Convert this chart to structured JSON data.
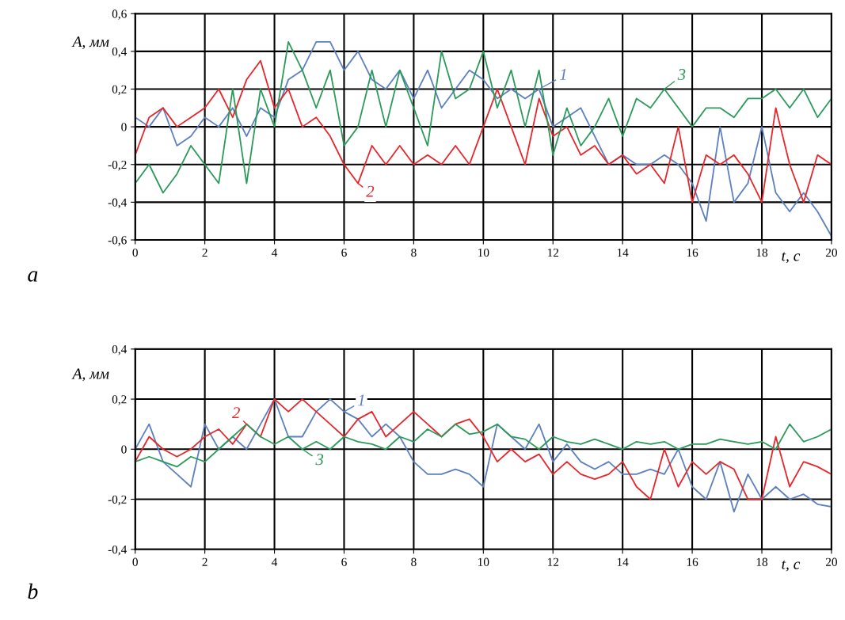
{
  "chart_data": [
    {
      "type": "line",
      "xlabel": "t, с",
      "ylabel": "A, мм",
      "annotations": [
        "a"
      ],
      "grid": true,
      "legend": "bottom right",
      "marker": "none",
      "line_style": "solid",
      "x": [
        0,
        0.4,
        0.8,
        1.2,
        1.6,
        2,
        2.4,
        2.8,
        3.2,
        3.6,
        4,
        4.4,
        4.8,
        5.2,
        5.6,
        6,
        6.4,
        6.8,
        7.2,
        7.6,
        8,
        8.4,
        8.8,
        9.2,
        9.6,
        10,
        10.4,
        10.8,
        11.2,
        11.6,
        12,
        12.4,
        12.8,
        13.2,
        13.6,
        14,
        14.4,
        14.8,
        15.2,
        15.6,
        16,
        16.4,
        16.8,
        17.2,
        17.6,
        18,
        18.4,
        18.8,
        19.2,
        19.6,
        20
      ],
      "xlim": [
        0,
        20
      ],
      "xticks": [
        0,
        2,
        4,
        6,
        8,
        10,
        12,
        14,
        16,
        18,
        20
      ],
      "ylim": [
        -0.6,
        0.6
      ],
      "yticks": [
        {
          "value": -0.6,
          "label": "-0,6"
        },
        {
          "value": -0.4,
          "label": "-0,4"
        },
        {
          "value": -0.2,
          "label": "-0,2"
        },
        {
          "value": 0,
          "label": "0"
        },
        {
          "value": 0.2,
          "label": "0,2"
        },
        {
          "value": 0.4,
          "label": "0,4"
        },
        {
          "value": 0.6,
          "label": "0,6"
        }
      ],
      "series": [
        {
          "name": "1",
          "color": "#5b7fbf",
          "values": [
            0.05,
            0.0,
            0.1,
            -0.1,
            -0.05,
            0.05,
            0.0,
            0.1,
            -0.05,
            0.1,
            0.05,
            0.25,
            0.3,
            0.45,
            0.45,
            0.3,
            0.4,
            0.25,
            0.2,
            0.3,
            0.15,
            0.3,
            0.1,
            0.2,
            0.3,
            0.25,
            0.15,
            0.2,
            0.15,
            0.2,
            0.0,
            0.05,
            0.1,
            -0.05,
            -0.2,
            -0.15,
            -0.2,
            -0.2,
            -0.15,
            -0.2,
            -0.3,
            -0.5,
            0.0,
            -0.4,
            -0.3,
            0.0,
            -0.35,
            -0.45,
            -0.35,
            -0.45,
            -0.58
          ]
        },
        {
          "name": "2",
          "color": "#e8252a",
          "values": [
            -0.15,
            0.05,
            0.1,
            0.0,
            0.05,
            0.1,
            0.2,
            0.05,
            0.25,
            0.35,
            0.1,
            0.2,
            0.0,
            0.05,
            -0.05,
            -0.2,
            -0.3,
            -0.1,
            -0.2,
            -0.1,
            -0.2,
            -0.15,
            -0.2,
            -0.1,
            -0.2,
            0.0,
            0.2,
            0.0,
            -0.2,
            0.15,
            -0.05,
            0.0,
            -0.15,
            -0.1,
            -0.2,
            -0.15,
            -0.25,
            -0.2,
            -0.3,
            0.0,
            -0.4,
            -0.15,
            -0.2,
            -0.15,
            -0.25,
            -0.4,
            0.1,
            -0.2,
            -0.4,
            -0.15,
            -0.2
          ]
        },
        {
          "name": "3",
          "color": "#2a9a5a",
          "values": [
            -0.3,
            -0.2,
            -0.35,
            -0.25,
            -0.1,
            -0.2,
            -0.3,
            0.2,
            -0.3,
            0.2,
            0.0,
            0.45,
            0.3,
            0.1,
            0.3,
            -0.1,
            0.0,
            0.3,
            0.0,
            0.3,
            0.1,
            -0.1,
            0.4,
            0.15,
            0.2,
            0.4,
            0.1,
            0.3,
            0.0,
            0.3,
            -0.15,
            0.1,
            -0.1,
            0.0,
            0.15,
            -0.05,
            0.15,
            0.1,
            0.2,
            0.1,
            0.0,
            0.1,
            0.1,
            0.05,
            0.15,
            0.15,
            0.2,
            0.1,
            0.2,
            0.05,
            0.15
          ]
        }
      ]
    },
    {
      "type": "line",
      "xlabel": "t, с",
      "ylabel": "A, мм",
      "annotations": [
        "b"
      ],
      "grid": true,
      "legend": "top left",
      "marker": "none",
      "line_style": "solid",
      "x": [
        0,
        0.4,
        0.8,
        1.2,
        1.6,
        2,
        2.4,
        2.8,
        3.2,
        3.6,
        4,
        4.4,
        4.8,
        5.2,
        5.6,
        6,
        6.4,
        6.8,
        7.2,
        7.6,
        8,
        8.4,
        8.8,
        9.2,
        9.6,
        10,
        10.4,
        10.8,
        11.2,
        11.6,
        12,
        12.4,
        12.8,
        13.2,
        13.6,
        14,
        14.4,
        14.8,
        15.2,
        15.6,
        16,
        16.4,
        16.8,
        17.2,
        17.6,
        18,
        18.4,
        18.8,
        19.2,
        19.6,
        20
      ],
      "xlim": [
        0,
        20
      ],
      "xticks": [
        0,
        2,
        4,
        6,
        8,
        10,
        12,
        14,
        16,
        18,
        20
      ],
      "ylim": [
        -0.4,
        0.4
      ],
      "yticks": [
        {
          "value": -0.4,
          "label": "-0,4"
        },
        {
          "value": -0.2,
          "label": "-0,2"
        },
        {
          "value": 0,
          "label": "0"
        },
        {
          "value": 0.2,
          "label": "0,2"
        },
        {
          "value": 0.4,
          "label": "0,4"
        }
      ],
      "series": [
        {
          "name": "1",
          "color": "#5b7fbf",
          "values": [
            0.0,
            0.1,
            -0.05,
            -0.1,
            -0.15,
            0.1,
            0.0,
            0.05,
            0.0,
            0.1,
            0.2,
            0.05,
            0.05,
            0.15,
            0.2,
            0.15,
            0.12,
            0.05,
            0.1,
            0.05,
            -0.05,
            -0.1,
            -0.1,
            -0.08,
            -0.1,
            -0.15,
            0.1,
            0.05,
            0.0,
            0.1,
            -0.05,
            0.02,
            -0.05,
            -0.08,
            -0.05,
            -0.1,
            -0.1,
            -0.08,
            -0.1,
            0.0,
            -0.15,
            -0.2,
            -0.05,
            -0.25,
            -0.1,
            -0.2,
            -0.15,
            -0.2,
            -0.18,
            -0.22,
            -0.23
          ]
        },
        {
          "name": "2",
          "color": "#e8252a",
          "values": [
            -0.05,
            0.05,
            0.0,
            -0.03,
            0.0,
            0.05,
            0.08,
            0.02,
            0.1,
            0.05,
            0.2,
            0.15,
            0.2,
            0.15,
            0.1,
            0.05,
            0.12,
            0.15,
            0.05,
            0.1,
            0.15,
            0.1,
            0.05,
            0.1,
            0.12,
            0.05,
            -0.05,
            0.0,
            -0.05,
            -0.02,
            -0.1,
            -0.05,
            -0.1,
            -0.12,
            -0.1,
            -0.05,
            -0.15,
            -0.2,
            0.0,
            -0.15,
            -0.05,
            -0.1,
            -0.05,
            -0.08,
            -0.2,
            -0.2,
            0.05,
            -0.15,
            -0.05,
            -0.07,
            -0.1
          ]
        },
        {
          "name": "3",
          "color": "#2a9a5a",
          "values": [
            -0.05,
            -0.03,
            -0.05,
            -0.07,
            -0.03,
            -0.05,
            0.0,
            0.05,
            0.1,
            0.05,
            0.02,
            0.05,
            0.0,
            0.03,
            0.0,
            0.05,
            0.03,
            0.02,
            0.0,
            0.05,
            0.03,
            0.08,
            0.05,
            0.1,
            0.06,
            0.07,
            0.1,
            0.05,
            0.04,
            0.0,
            0.05,
            0.03,
            0.02,
            0.04,
            0.02,
            0.0,
            0.03,
            0.02,
            0.03,
            0.0,
            0.02,
            0.02,
            0.04,
            0.03,
            0.02,
            0.03,
            0.0,
            0.1,
            0.03,
            0.05,
            0.08
          ]
        }
      ]
    }
  ]
}
